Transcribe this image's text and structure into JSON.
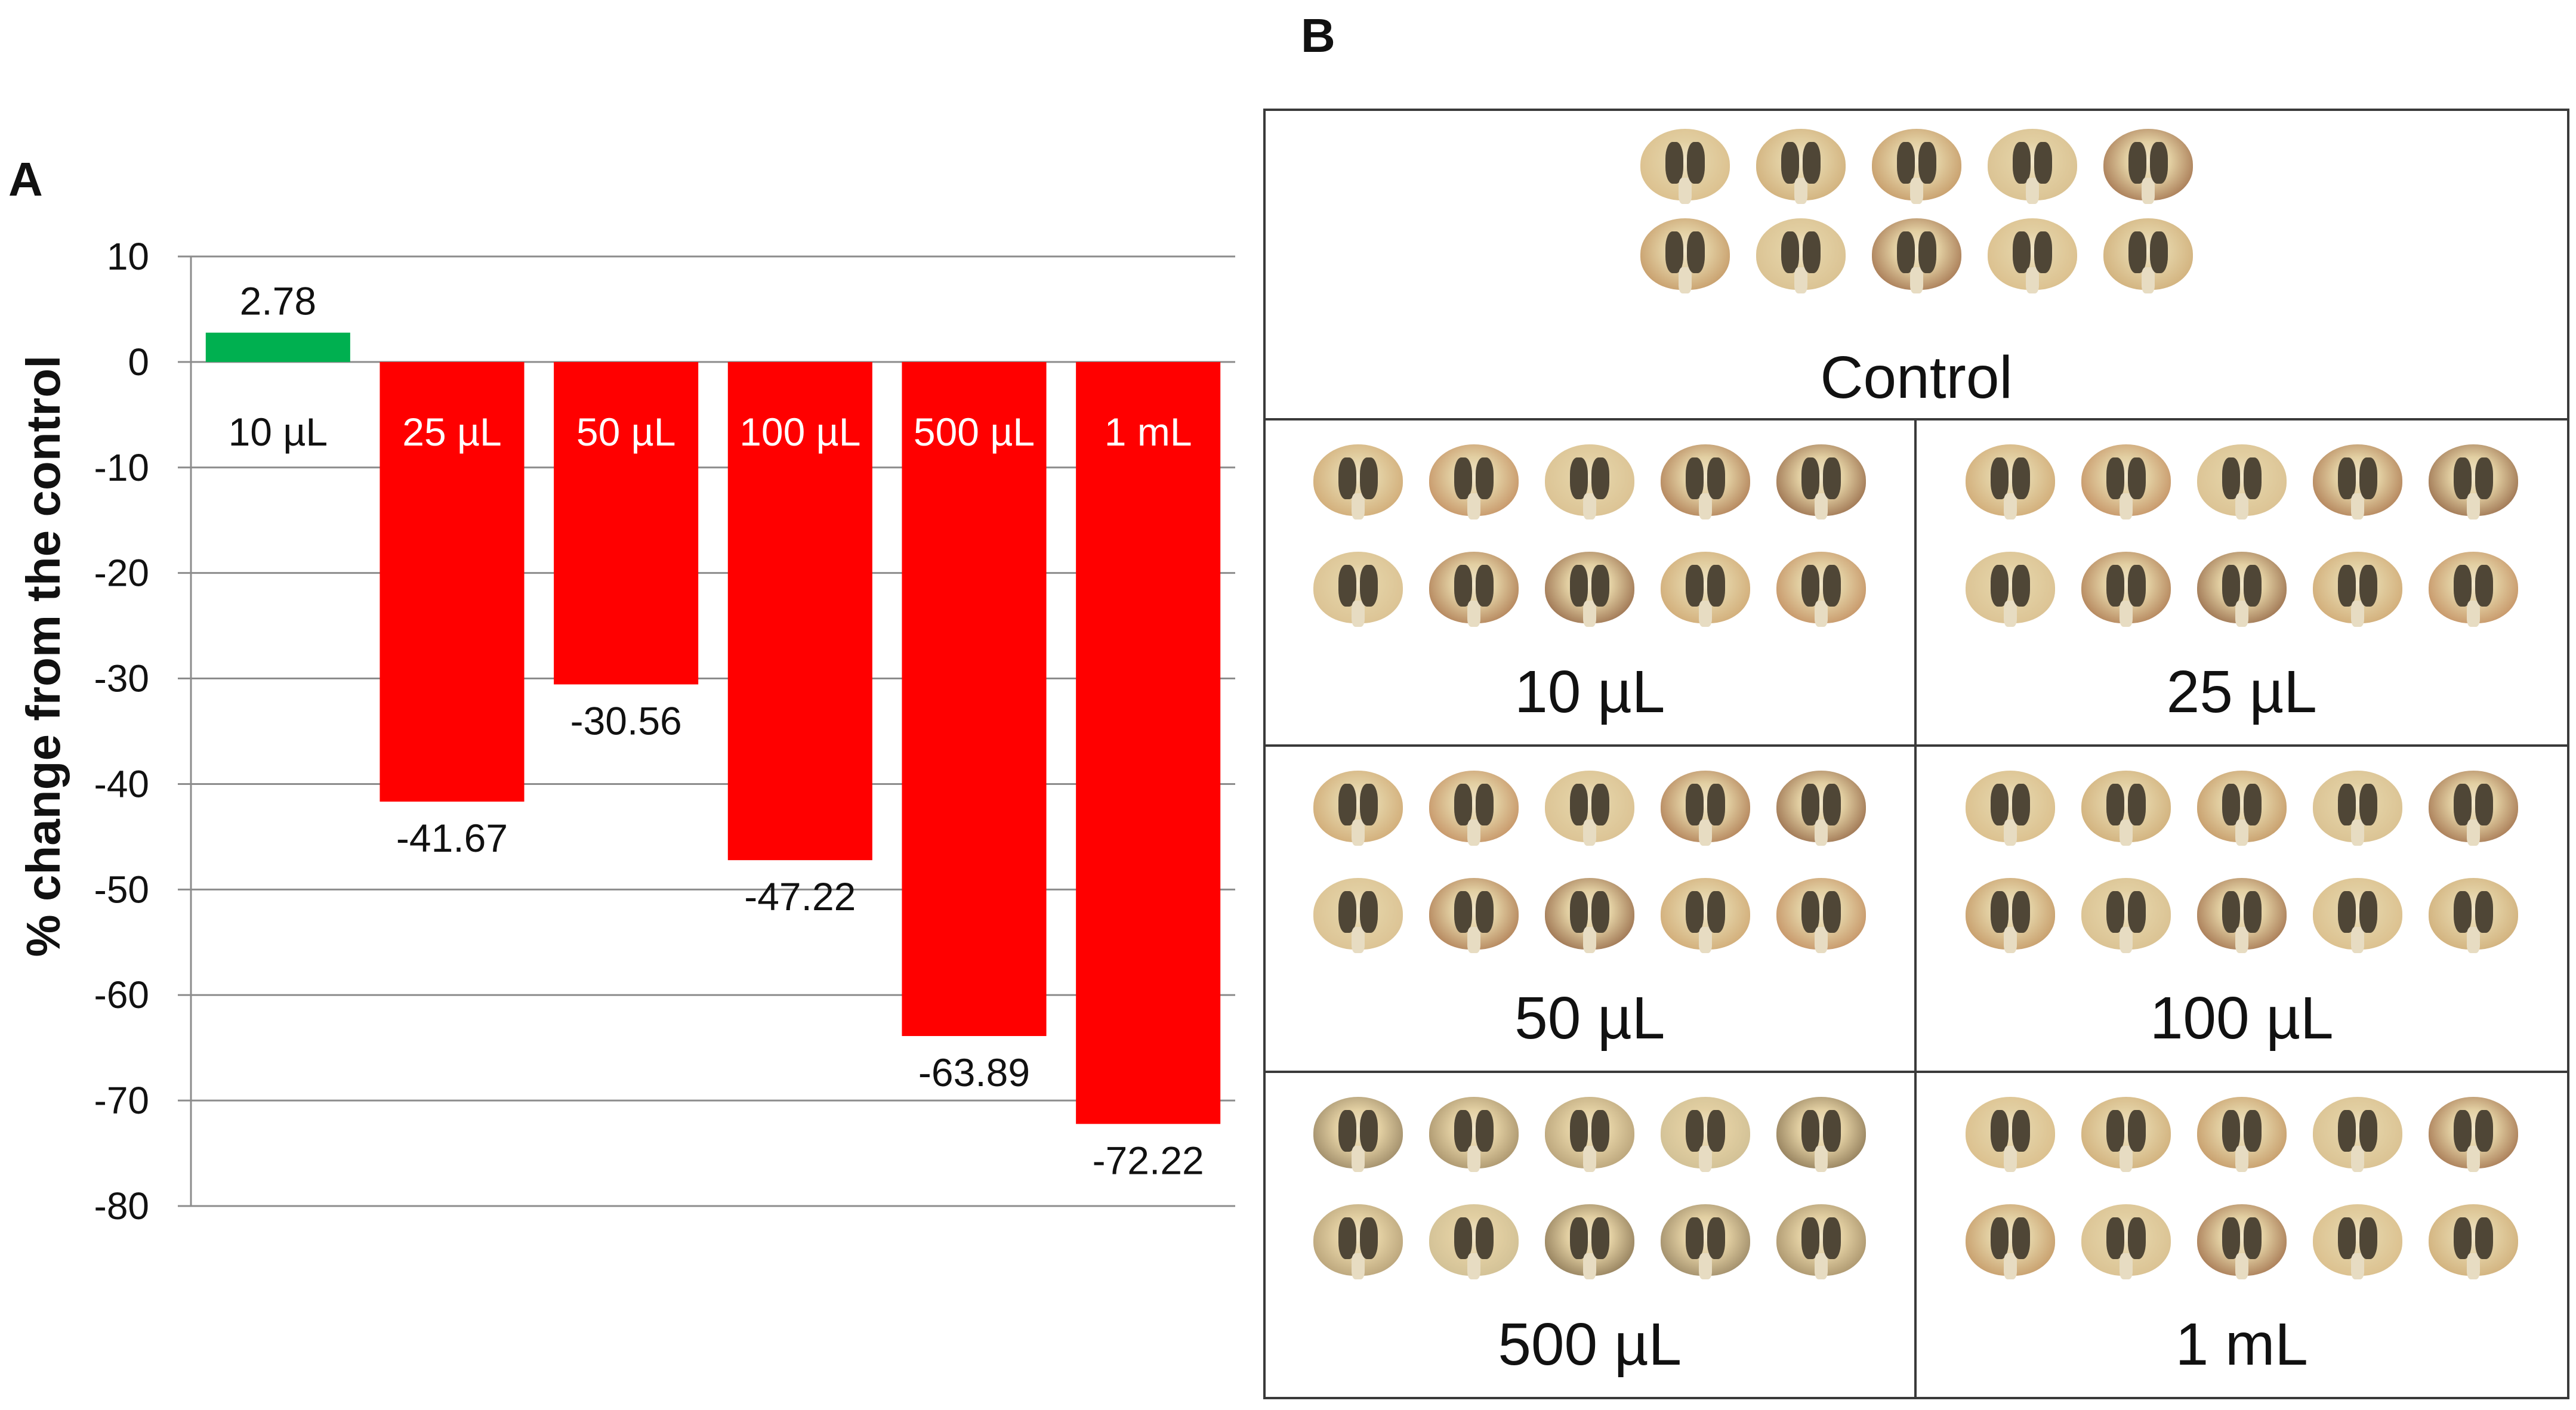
{
  "panels": {
    "a_letter": "A",
    "b_letter": "B"
  },
  "chart_data": {
    "type": "bar",
    "ylabel": "% change from the control",
    "ylim": [
      -80,
      10
    ],
    "yticks": [
      10,
      0,
      -10,
      -20,
      -30,
      -40,
      -50,
      -60,
      -70,
      -80
    ],
    "grid": true,
    "categories": [
      "10  µL",
      "25 µL",
      "50  µL",
      "100 µL",
      "500 µL",
      "1 mL"
    ],
    "values": [
      2.78,
      -41.67,
      -30.56,
      -47.22,
      -63.89,
      -72.22
    ],
    "value_labels": [
      "2.78",
      "-41.67",
      "-30.56",
      "-47.22",
      "-63.89",
      "-72.22"
    ],
    "colors": [
      "#00b050",
      "#ff0000",
      "#ff0000",
      "#ff0000",
      "#ff0000",
      "#ff0000"
    ],
    "category_label_colors": [
      "#111111",
      "#ffffff",
      "#ffffff",
      "#ffffff",
      "#ffffff",
      "#ffffff"
    ]
  },
  "image_grid": {
    "cells": [
      {
        "label": "Control",
        "tone": "light"
      },
      {
        "label": "10 µL",
        "tone": "medium"
      },
      {
        "label": "25 µL",
        "tone": "medium"
      },
      {
        "label": "50 µL",
        "tone": "medium"
      },
      {
        "label": "100 µL",
        "tone": "light"
      },
      {
        "label": "500 µL",
        "tone": "dark"
      },
      {
        "label": "1 mL",
        "tone": "light"
      }
    ],
    "tones": {
      "light": [
        "#d8b883",
        "#c9a26a",
        "#b9844f",
        "#d6bb8a",
        "#8a4f2e"
      ],
      "medium": [
        "#c99b63",
        "#b8784a",
        "#d8bc8c",
        "#9b5d36",
        "#7a4528"
      ],
      "dark": [
        "#7d6a4c",
        "#8e7752",
        "#a58e66",
        "#c9b98f",
        "#6b5638"
      ]
    }
  }
}
